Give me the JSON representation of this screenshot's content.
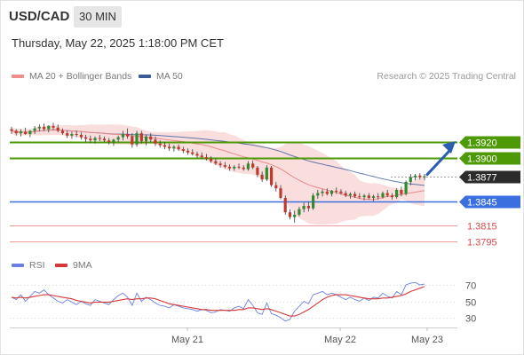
{
  "header": {
    "symbol": "USD/CAD",
    "timeframe": "30 MIN",
    "datetime": "Thursday, May 22, 2025 1:18:00 PM CET"
  },
  "legend": {
    "ma20_label": "MA 20 + Bollinger Bands",
    "ma50_label": "MA 50",
    "copyright": "Research © 2025 Trading Central",
    "rsi_label": "RSI",
    "ma9_label": "9MA"
  },
  "colors": {
    "up_candle": "#2e8b2e",
    "down_candle": "#c0392b",
    "ma20": "#e8898a",
    "ma50": "#3a5a98",
    "bollinger_fill": "#f9d8d8",
    "resistance": "#4e9a06",
    "pivot": "#3b6fe0",
    "support": "#f19a9a",
    "current": "#2b2b2b",
    "arrow": "#2a5db0",
    "rsi": "#6a7fe0",
    "rsi_ma": "#d63838"
  },
  "chart_data": {
    "type": "candlestick",
    "x_labels": [
      "May 21",
      "May 22",
      "May 23"
    ],
    "price_levels": [
      {
        "value": "1.3920",
        "kind": "resistance"
      },
      {
        "value": "1.3900",
        "kind": "resistance"
      },
      {
        "value": "1.3877",
        "kind": "current"
      },
      {
        "value": "1.3845",
        "kind": "pivot"
      },
      {
        "value": "1.3815",
        "kind": "support"
      },
      {
        "value": "1.3795",
        "kind": "support"
      }
    ],
    "ylim": [
      1.378,
      1.399
    ],
    "ohlc": [
      [
        1.3936,
        1.3939,
        1.393,
        1.3934
      ],
      [
        1.3934,
        1.3936,
        1.3928,
        1.3931
      ],
      [
        1.3931,
        1.3936,
        1.3927,
        1.3933
      ],
      [
        1.3933,
        1.3938,
        1.3929,
        1.393
      ],
      [
        1.393,
        1.3935,
        1.3926,
        1.3934
      ],
      [
        1.3934,
        1.394,
        1.393,
        1.3937
      ],
      [
        1.3937,
        1.3942,
        1.3933,
        1.3939
      ],
      [
        1.3939,
        1.3943,
        1.3934,
        1.3936
      ],
      [
        1.3936,
        1.3941,
        1.3932,
        1.394
      ],
      [
        1.394,
        1.3944,
        1.3935,
        1.3938
      ],
      [
        1.3938,
        1.3942,
        1.3932,
        1.3934
      ],
      [
        1.3934,
        1.3937,
        1.3929,
        1.3931
      ],
      [
        1.3931,
        1.3934,
        1.3925,
        1.3928
      ],
      [
        1.3928,
        1.3933,
        1.3924,
        1.393
      ],
      [
        1.393,
        1.3934,
        1.3926,
        1.3929
      ],
      [
        1.3929,
        1.3932,
        1.3923,
        1.3926
      ],
      [
        1.3926,
        1.3929,
        1.392,
        1.3924
      ],
      [
        1.3924,
        1.3928,
        1.3919,
        1.3922
      ],
      [
        1.3922,
        1.3927,
        1.3918,
        1.3925
      ],
      [
        1.3925,
        1.3929,
        1.3921,
        1.3924
      ],
      [
        1.3924,
        1.3927,
        1.392,
        1.3922
      ],
      [
        1.3922,
        1.3925,
        1.3917,
        1.392
      ],
      [
        1.392,
        1.3924,
        1.3915,
        1.3923
      ],
      [
        1.3923,
        1.3928,
        1.392,
        1.3926
      ],
      [
        1.3926,
        1.3934,
        1.3922,
        1.393
      ],
      [
        1.393,
        1.3937,
        1.3924,
        1.3927
      ],
      [
        1.3927,
        1.3931,
        1.3913,
        1.3917
      ],
      [
        1.3917,
        1.3934,
        1.3914,
        1.3931
      ],
      [
        1.3931,
        1.3934,
        1.3918,
        1.3921
      ],
      [
        1.3921,
        1.3929,
        1.3916,
        1.3927
      ],
      [
        1.3927,
        1.3931,
        1.392,
        1.3923
      ],
      [
        1.3923,
        1.3927,
        1.3915,
        1.3918
      ],
      [
        1.3918,
        1.3922,
        1.3913,
        1.3916
      ],
      [
        1.3916,
        1.392,
        1.3911,
        1.3914
      ],
      [
        1.3914,
        1.3918,
        1.3909,
        1.3912
      ],
      [
        1.3912,
        1.3916,
        1.3908,
        1.3914
      ],
      [
        1.3914,
        1.3917,
        1.3909,
        1.3911
      ],
      [
        1.3911,
        1.3914,
        1.3906,
        1.3909
      ],
      [
        1.3909,
        1.3912,
        1.3904,
        1.3907
      ],
      [
        1.3907,
        1.3911,
        1.3903,
        1.3905
      ],
      [
        1.3905,
        1.3908,
        1.39,
        1.3903
      ],
      [
        1.3903,
        1.3907,
        1.3899,
        1.3901
      ],
      [
        1.3901,
        1.3905,
        1.3897,
        1.3899
      ],
      [
        1.3899,
        1.3902,
        1.3894,
        1.3896
      ],
      [
        1.3896,
        1.3899,
        1.3891,
        1.3893
      ],
      [
        1.3893,
        1.3896,
        1.3888,
        1.3891
      ],
      [
        1.3891,
        1.3895,
        1.3887,
        1.3889
      ],
      [
        1.3889,
        1.3892,
        1.3884,
        1.3887
      ],
      [
        1.3887,
        1.3891,
        1.3884,
        1.3889
      ],
      [
        1.3889,
        1.3893,
        1.3886,
        1.3888
      ],
      [
        1.3888,
        1.3891,
        1.3884,
        1.3886
      ],
      [
        1.3886,
        1.3896,
        1.3884,
        1.3893
      ],
      [
        1.3893,
        1.3897,
        1.3886,
        1.3888
      ],
      [
        1.3888,
        1.389,
        1.3876,
        1.3879
      ],
      [
        1.3879,
        1.3883,
        1.387,
        1.3873
      ],
      [
        1.3873,
        1.3891,
        1.3871,
        1.3888
      ],
      [
        1.3888,
        1.389,
        1.3864,
        1.3866
      ],
      [
        1.3866,
        1.387,
        1.3858,
        1.3862
      ],
      [
        1.3862,
        1.3866,
        1.3848,
        1.385
      ],
      [
        1.385,
        1.3853,
        1.3829,
        1.3832
      ],
      [
        1.3832,
        1.3836,
        1.3823,
        1.3826
      ],
      [
        1.3826,
        1.3834,
        1.3819,
        1.3829
      ],
      [
        1.3829,
        1.3839,
        1.3827,
        1.3836
      ],
      [
        1.3836,
        1.3844,
        1.3832,
        1.384
      ],
      [
        1.384,
        1.3845,
        1.3833,
        1.3837
      ],
      [
        1.3837,
        1.3856,
        1.3835,
        1.3853
      ],
      [
        1.3853,
        1.386,
        1.3849,
        1.3856
      ],
      [
        1.3856,
        1.3861,
        1.3852,
        1.3858
      ],
      [
        1.3858,
        1.3862,
        1.3853,
        1.3855
      ],
      [
        1.3855,
        1.386,
        1.3852,
        1.3859
      ],
      [
        1.3859,
        1.3863,
        1.3855,
        1.3858
      ],
      [
        1.3858,
        1.3861,
        1.3854,
        1.3856
      ],
      [
        1.3856,
        1.3859,
        1.3851,
        1.3853
      ],
      [
        1.3853,
        1.3857,
        1.3849,
        1.3855
      ],
      [
        1.3855,
        1.3858,
        1.385,
        1.3852
      ],
      [
        1.3852,
        1.3856,
        1.3849,
        1.3851
      ],
      [
        1.3851,
        1.3855,
        1.3847,
        1.3853
      ],
      [
        1.3853,
        1.3856,
        1.3848,
        1.385
      ],
      [
        1.385,
        1.3854,
        1.3846,
        1.3852
      ],
      [
        1.3852,
        1.3856,
        1.3848,
        1.3851
      ],
      [
        1.3851,
        1.3858,
        1.3849,
        1.3856
      ],
      [
        1.3856,
        1.386,
        1.3851,
        1.3853
      ],
      [
        1.3853,
        1.3856,
        1.3848,
        1.3851
      ],
      [
        1.3851,
        1.3862,
        1.3849,
        1.386
      ],
      [
        1.386,
        1.3864,
        1.3852,
        1.3855
      ],
      [
        1.3855,
        1.3872,
        1.3853,
        1.387
      ],
      [
        1.387,
        1.388,
        1.3866,
        1.3876
      ],
      [
        1.3876,
        1.388,
        1.3872,
        1.3878
      ],
      [
        1.3878,
        1.3881,
        1.3873,
        1.3876
      ],
      [
        1.3876,
        1.388,
        1.3872,
        1.3877
      ]
    ],
    "series": [
      {
        "name": "MA 20 + Bollinger Bands",
        "kind": "ma",
        "period": 20
      },
      {
        "name": "MA 50",
        "kind": "ma",
        "period": 50
      }
    ],
    "rsi_panel": {
      "levels": [
        "70",
        "50",
        "30"
      ],
      "series": [
        {
          "name": "RSI",
          "values": [
            55,
            52,
            58,
            50,
            56,
            62,
            60,
            64,
            58,
            54,
            50,
            48,
            52,
            49,
            46,
            50,
            47,
            45,
            52,
            50,
            48,
            46,
            52,
            57,
            60,
            55,
            45,
            60,
            50,
            55,
            52,
            48,
            45,
            44,
            42,
            46,
            44,
            42,
            41,
            40,
            38,
            40,
            39,
            36,
            37,
            40,
            39,
            38,
            42,
            44,
            41,
            52,
            45,
            36,
            34,
            48,
            35,
            33,
            30,
            26,
            28,
            38,
            44,
            50,
            47,
            58,
            60,
            62,
            58,
            60,
            58,
            55,
            52,
            55,
            52,
            50,
            54,
            51,
            55,
            54,
            60,
            56,
            54,
            62,
            58,
            70,
            72,
            73,
            70,
            71
          ]
        },
        {
          "name": "9MA",
          "values": [
            55,
            54,
            55,
            54,
            55,
            56,
            57,
            58,
            58,
            57,
            56,
            55,
            54,
            53,
            51,
            50,
            49,
            48,
            49,
            49,
            49,
            49,
            50,
            51,
            52,
            53,
            52,
            53,
            53,
            54,
            54,
            53,
            51,
            49,
            47,
            46,
            45,
            44,
            43,
            42,
            41,
            40,
            40,
            39,
            39,
            39,
            39,
            39,
            39,
            40,
            40,
            42,
            42,
            41,
            40,
            41,
            40,
            38,
            36,
            34,
            32,
            32,
            34,
            37,
            40,
            44,
            48,
            52,
            55,
            57,
            58,
            58,
            58,
            57,
            56,
            55,
            54,
            53,
            53,
            53,
            54,
            54,
            55,
            56,
            57,
            59,
            62,
            64,
            66,
            68
          ]
        }
      ]
    }
  }
}
